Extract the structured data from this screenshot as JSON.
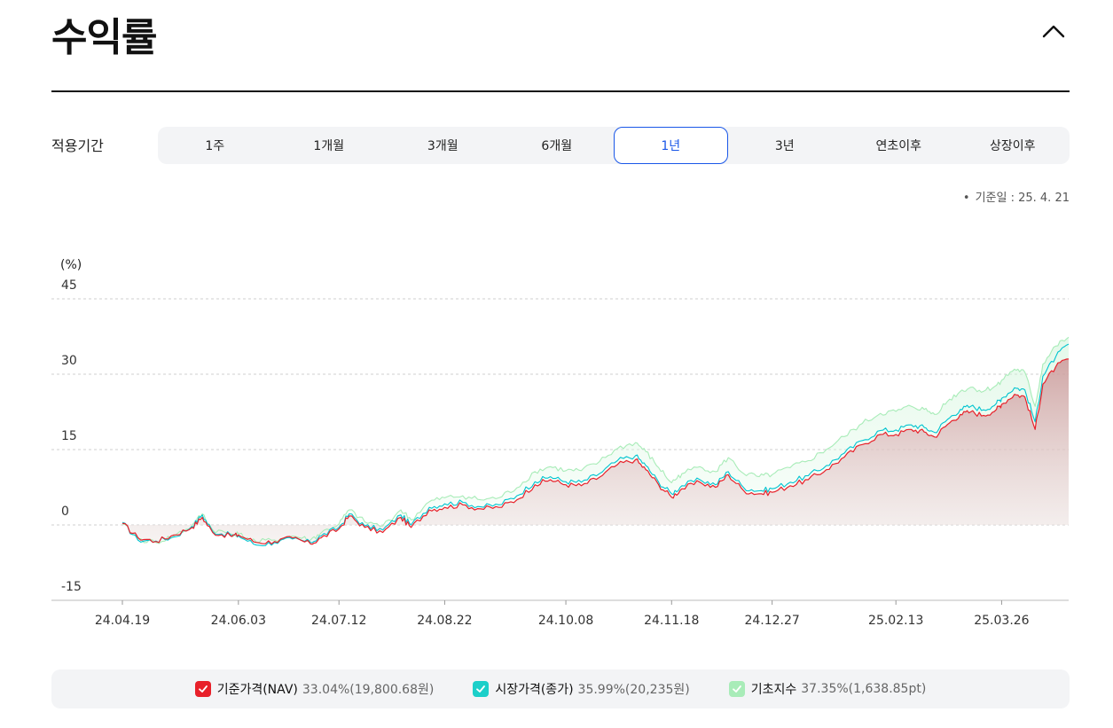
{
  "header": {
    "title": "수익률",
    "collapse_icon": "chevron-up-icon"
  },
  "period": {
    "label": "적용기간",
    "tabs": [
      "1주",
      "1개월",
      "3개월",
      "6개월",
      "1년",
      "3년",
      "연초이후",
      "상장이후"
    ],
    "active_index": 4,
    "accent": "#1a57e8"
  },
  "base_date": {
    "bullet": "•",
    "text": "기준일 : 25. 4. 21"
  },
  "chart_data": {
    "type": "area",
    "y_unit": "(%)",
    "ylim": [
      -15,
      45
    ],
    "y_ticks": [
      "45",
      "30",
      "15",
      "0",
      "-15"
    ],
    "y_tick_values": [
      45,
      30,
      15,
      0,
      -15
    ],
    "x_ticks": [
      "24.04.19",
      "24.06.03",
      "24.07.12",
      "24.08.22",
      "24.10.08",
      "24.11.18",
      "24.12.27",
      "25.02.13",
      "25.03.26"
    ],
    "grid": true,
    "series": [
      {
        "name": "기준가격(NAV)",
        "color": "#e8202a",
        "filled": true,
        "points": [
          [
            "24.04.19",
            0.3
          ],
          [
            "24.04.25",
            -2.5
          ],
          [
            "24.05.02",
            -3.3
          ],
          [
            "24.05.09",
            -2.0
          ],
          [
            "24.05.16",
            -0.5
          ],
          [
            "24.05.20",
            1.5
          ],
          [
            "24.05.24",
            -1.5
          ],
          [
            "24.05.31",
            -2.2
          ],
          [
            "24.06.03",
            -2.0
          ],
          [
            "24.06.10",
            -3.5
          ],
          [
            "24.06.17",
            -3.3
          ],
          [
            "24.06.24",
            -2.6
          ],
          [
            "24.07.01",
            -3.8
          ],
          [
            "24.07.05",
            -2.6
          ],
          [
            "24.07.12",
            -0.8
          ],
          [
            "24.07.16",
            1.8
          ],
          [
            "24.07.22",
            -0.5
          ],
          [
            "24.07.29",
            -1.5
          ],
          [
            "24.08.05",
            1.5
          ],
          [
            "24.08.09",
            -0.5
          ],
          [
            "24.08.16",
            3.0
          ],
          [
            "24.08.22",
            3.5
          ],
          [
            "24.08.29",
            4.0
          ],
          [
            "24.09.05",
            3.2
          ],
          [
            "24.09.12",
            3.5
          ],
          [
            "24.09.19",
            5.0
          ],
          [
            "24.09.26",
            8.0
          ],
          [
            "24.10.02",
            9.0
          ],
          [
            "24.10.08",
            8.0
          ],
          [
            "24.10.14",
            7.8
          ],
          [
            "24.10.21",
            9.5
          ],
          [
            "24.10.28",
            12.0
          ],
          [
            "24.11.04",
            13.0
          ],
          [
            "24.11.08",
            11.0
          ],
          [
            "24.11.13",
            8.0
          ],
          [
            "24.11.18",
            5.5
          ],
          [
            "24.11.22",
            7.2
          ],
          [
            "24.11.29",
            8.5
          ],
          [
            "24.12.05",
            7.5
          ],
          [
            "24.12.10",
            10.0
          ],
          [
            "24.12.16",
            6.8
          ],
          [
            "24.12.22",
            6.2
          ],
          [
            "24.12.27",
            6.5
          ],
          [
            "25.01.03",
            7.8
          ],
          [
            "25.01.10",
            9.0
          ],
          [
            "25.01.17",
            11.0
          ],
          [
            "25.01.24",
            13.5
          ],
          [
            "25.01.31",
            16.0
          ],
          [
            "25.02.07",
            18.0
          ],
          [
            "25.02.13",
            18.0
          ],
          [
            "25.02.19",
            19.0
          ],
          [
            "25.02.24",
            18.5
          ],
          [
            "25.02.28",
            17.5
          ],
          [
            "25.03.05",
            20.0
          ],
          [
            "25.03.10",
            22.0
          ],
          [
            "25.03.14",
            22.5
          ],
          [
            "25.03.19",
            21.8
          ],
          [
            "25.03.24",
            23.0
          ],
          [
            "25.03.26",
            24.0
          ],
          [
            "25.03.31",
            26.0
          ],
          [
            "25.04.04",
            25.5
          ],
          [
            "25.04.08",
            19.0
          ],
          [
            "25.04.11",
            28.0
          ],
          [
            "25.04.16",
            31.5
          ],
          [
            "25.04.21",
            33.04
          ]
        ]
      },
      {
        "name": "시장가격(종가)",
        "color": "#00c4d0",
        "filled": false,
        "points": [
          [
            "24.04.19",
            0.5
          ],
          [
            "24.04.25",
            -3.0
          ],
          [
            "24.05.02",
            -3.2
          ],
          [
            "24.05.09",
            -2.4
          ],
          [
            "24.05.16",
            -0.3
          ],
          [
            "24.05.20",
            2.0
          ],
          [
            "24.05.24",
            -1.3
          ],
          [
            "24.05.31",
            -2.0
          ],
          [
            "24.06.03",
            -2.2
          ],
          [
            "24.06.10",
            -4.0
          ],
          [
            "24.06.17",
            -3.5
          ],
          [
            "24.06.24",
            -2.8
          ],
          [
            "24.07.01",
            -3.5
          ],
          [
            "24.07.05",
            -2.2
          ],
          [
            "24.07.12",
            -0.5
          ],
          [
            "24.07.16",
            2.2
          ],
          [
            "24.07.22",
            -0.2
          ],
          [
            "24.07.29",
            -1.0
          ],
          [
            "24.08.05",
            2.0
          ],
          [
            "24.08.09",
            0.0
          ],
          [
            "24.08.16",
            3.5
          ],
          [
            "24.08.22",
            4.2
          ],
          [
            "24.08.29",
            4.5
          ],
          [
            "24.09.05",
            3.6
          ],
          [
            "24.09.12",
            4.0
          ],
          [
            "24.09.19",
            5.8
          ],
          [
            "24.09.26",
            8.6
          ],
          [
            "24.10.02",
            9.6
          ],
          [
            "24.10.08",
            8.6
          ],
          [
            "24.10.14",
            8.5
          ],
          [
            "24.10.21",
            10.2
          ],
          [
            "24.10.28",
            12.8
          ],
          [
            "24.11.04",
            13.8
          ],
          [
            "24.11.08",
            11.8
          ],
          [
            "24.11.13",
            8.5
          ],
          [
            "24.11.18",
            6.2
          ],
          [
            "24.11.22",
            7.8
          ],
          [
            "24.11.29",
            9.0
          ],
          [
            "24.12.05",
            8.0
          ],
          [
            "24.12.10",
            10.6
          ],
          [
            "24.12.16",
            7.4
          ],
          [
            "24.12.22",
            6.8
          ],
          [
            "24.12.27",
            7.2
          ],
          [
            "25.01.03",
            8.5
          ],
          [
            "25.01.10",
            9.8
          ],
          [
            "25.01.17",
            11.8
          ],
          [
            "25.01.24",
            14.3
          ],
          [
            "25.01.31",
            16.8
          ],
          [
            "25.02.07",
            18.8
          ],
          [
            "25.02.13",
            18.9
          ],
          [
            "25.02.19",
            19.9
          ],
          [
            "25.02.24",
            19.4
          ],
          [
            "25.02.28",
            18.4
          ],
          [
            "25.03.05",
            21.0
          ],
          [
            "25.03.10",
            23.0
          ],
          [
            "25.03.14",
            23.6
          ],
          [
            "25.03.19",
            22.9
          ],
          [
            "25.03.24",
            24.2
          ],
          [
            "25.03.26",
            25.2
          ],
          [
            "25.03.31",
            27.3
          ],
          [
            "25.04.04",
            26.9
          ],
          [
            "25.04.08",
            20.5
          ],
          [
            "25.04.11",
            29.6
          ],
          [
            "25.04.16",
            33.5
          ],
          [
            "25.04.21",
            35.99
          ]
        ]
      },
      {
        "name": "기초지수",
        "color": "#a8ecb8",
        "filled": false,
        "points": [
          [
            "24.04.19",
            0.2
          ],
          [
            "24.04.25",
            -2.8
          ],
          [
            "24.05.02",
            -3.5
          ],
          [
            "24.05.09",
            -2.2
          ],
          [
            "24.05.16",
            -0.2
          ],
          [
            "24.05.20",
            2.2
          ],
          [
            "24.05.24",
            -1.0
          ],
          [
            "24.05.31",
            -1.8
          ],
          [
            "24.06.03",
            -1.8
          ],
          [
            "24.06.10",
            -3.4
          ],
          [
            "24.06.17",
            -3.0
          ],
          [
            "24.06.24",
            -2.2
          ],
          [
            "24.07.01",
            -3.0
          ],
          [
            "24.07.05",
            -1.6
          ],
          [
            "24.07.12",
            0.2
          ],
          [
            "24.07.16",
            3.0
          ],
          [
            "24.07.22",
            0.6
          ],
          [
            "24.07.29",
            -0.2
          ],
          [
            "24.08.05",
            3.0
          ],
          [
            "24.08.09",
            1.0
          ],
          [
            "24.08.16",
            4.6
          ],
          [
            "24.08.22",
            5.4
          ],
          [
            "24.08.29",
            5.8
          ],
          [
            "24.09.05",
            5.0
          ],
          [
            "24.09.12",
            5.4
          ],
          [
            "24.09.19",
            7.4
          ],
          [
            "24.09.26",
            10.6
          ],
          [
            "24.10.02",
            11.6
          ],
          [
            "24.10.08",
            10.8
          ],
          [
            "24.10.14",
            10.8
          ],
          [
            "24.10.21",
            12.6
          ],
          [
            "24.10.28",
            15.2
          ],
          [
            "24.11.04",
            16.4
          ],
          [
            "24.11.08",
            14.6
          ],
          [
            "24.11.13",
            11.4
          ],
          [
            "24.11.18",
            8.4
          ],
          [
            "24.11.22",
            10.2
          ],
          [
            "24.11.29",
            11.6
          ],
          [
            "24.12.05",
            10.6
          ],
          [
            "24.12.10",
            13.4
          ],
          [
            "24.12.16",
            10.2
          ],
          [
            "24.12.22",
            9.6
          ],
          [
            "24.12.27",
            10.0
          ],
          [
            "25.01.03",
            11.4
          ],
          [
            "25.01.10",
            12.8
          ],
          [
            "25.01.17",
            15.0
          ],
          [
            "25.01.24",
            17.6
          ],
          [
            "25.01.31",
            20.2
          ],
          [
            "25.02.07",
            22.2
          ],
          [
            "25.02.13",
            22.6
          ],
          [
            "25.02.19",
            23.6
          ],
          [
            "25.02.24",
            23.0
          ],
          [
            "25.02.28",
            22.0
          ],
          [
            "25.03.05",
            24.6
          ],
          [
            "25.03.10",
            26.6
          ],
          [
            "25.03.14",
            27.4
          ],
          [
            "25.03.19",
            26.6
          ],
          [
            "25.03.24",
            27.8
          ],
          [
            "25.03.26",
            28.8
          ],
          [
            "25.03.31",
            31.0
          ],
          [
            "25.04.04",
            30.4
          ],
          [
            "25.04.08",
            23.6
          ],
          [
            "25.04.11",
            32.0
          ],
          [
            "25.04.16",
            35.6
          ],
          [
            "25.04.21",
            37.35
          ]
        ]
      }
    ]
  },
  "legend": [
    {
      "name": "기준가격(NAV)",
      "value": "33.04%(19,800.68원)",
      "color": "#e8202a"
    },
    {
      "name": "시장가격(종가)",
      "value": "35.99%(20,235원)",
      "color": "#1ccfc9"
    },
    {
      "name": "기초지수",
      "value": "37.35%(1,638.85pt)",
      "color": "#a8ecb8"
    }
  ]
}
